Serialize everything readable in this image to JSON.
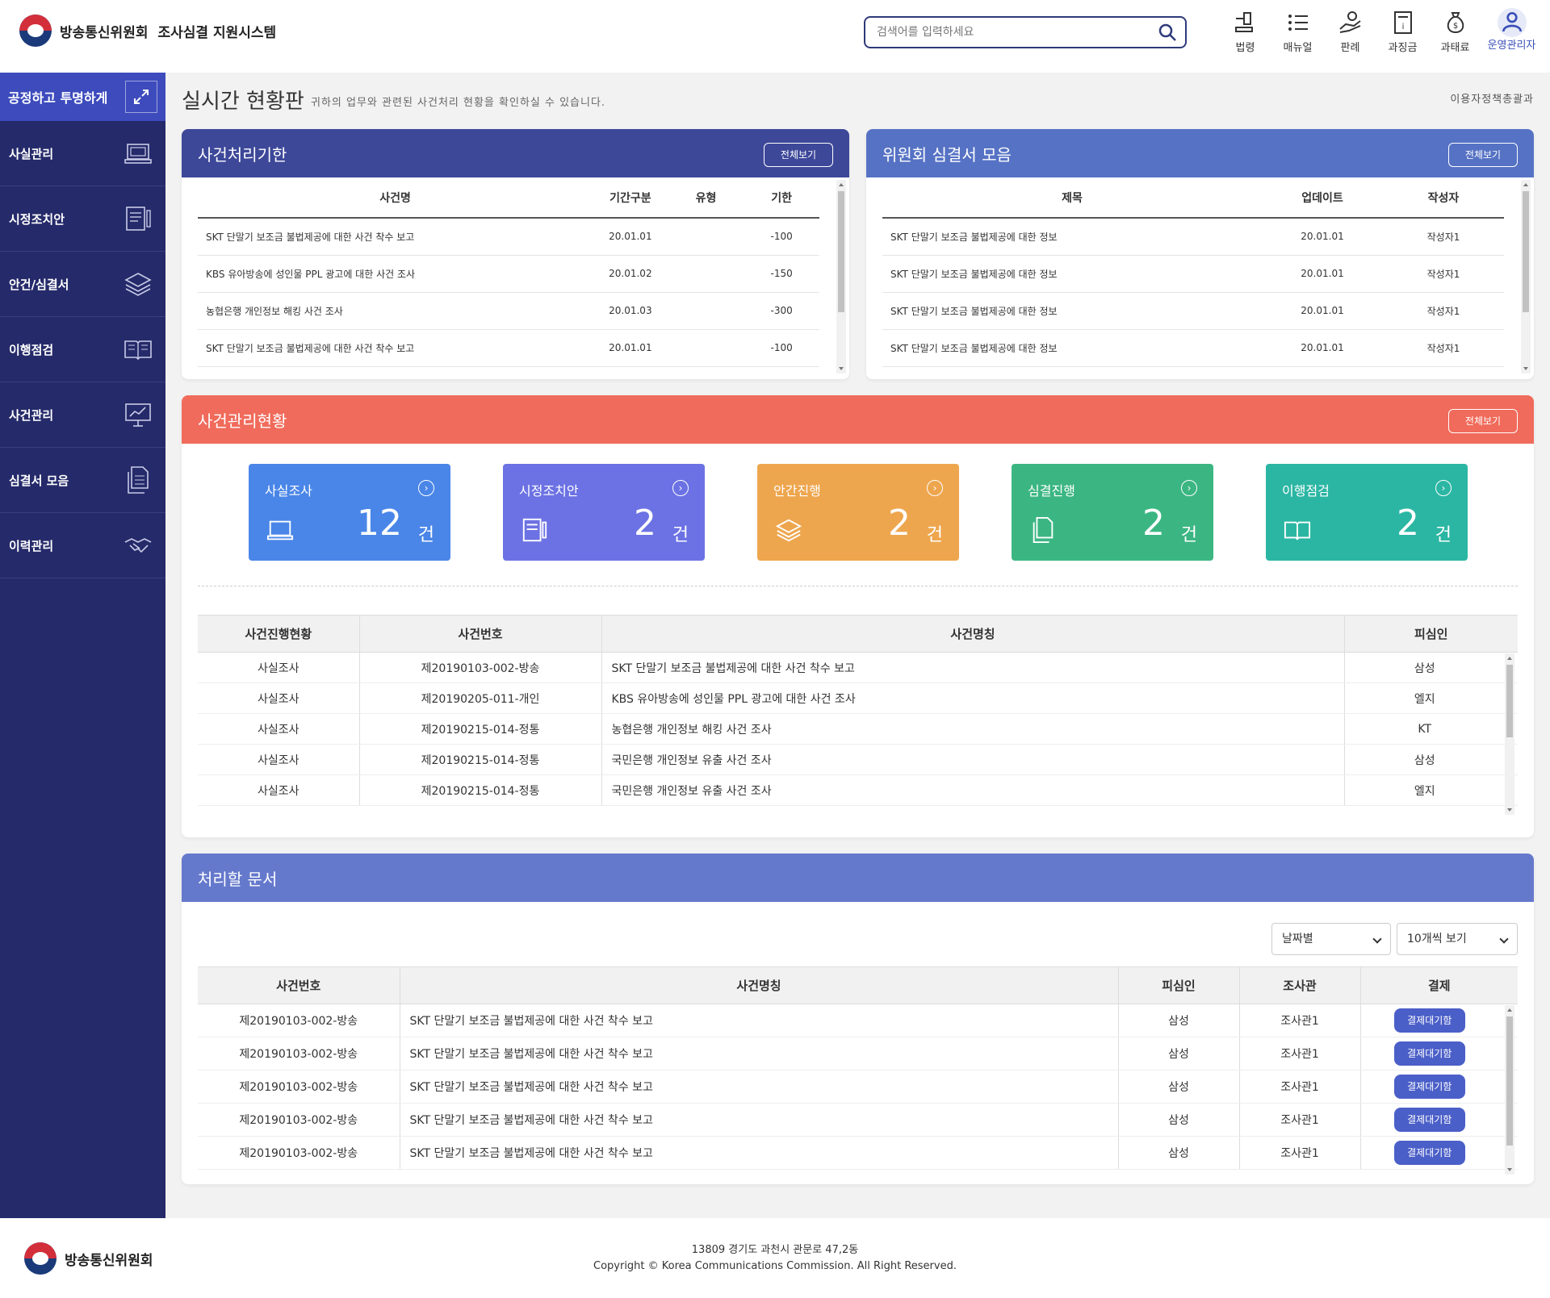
{
  "header": {
    "org": "방송통신위원회",
    "system": "조사심결 지원시스템",
    "search_placeholder": "검색어를 입력하세요",
    "nav": [
      {
        "label": "법령",
        "icon": "gavel-icon"
      },
      {
        "label": "매뉴얼",
        "icon": "list-icon"
      },
      {
        "label": "판례",
        "icon": "hand-coin-icon"
      },
      {
        "label": "과징금",
        "icon": "receipt-icon"
      },
      {
        "label": "과태료",
        "icon": "money-bag-icon"
      }
    ],
    "user_label": "운영관리자"
  },
  "sidebar": {
    "top_label": "공정하고 투명하게",
    "items": [
      {
        "label": "사실관리",
        "icon": "laptop-icon"
      },
      {
        "label": "시정조치안",
        "icon": "document-pen-icon"
      },
      {
        "label": "안건/심결서",
        "icon": "layers-icon"
      },
      {
        "label": "이행점검",
        "icon": "book-icon"
      },
      {
        "label": "사건관리",
        "icon": "chart-board-icon"
      },
      {
        "label": "심결서 모음",
        "icon": "files-icon"
      },
      {
        "label": "이력관리",
        "icon": "handshake-icon"
      }
    ]
  },
  "page": {
    "title": "실시간 현황판",
    "subtitle": "귀하의 업무와 관련된 사건처리 현황을 확인하실 수 있습니다.",
    "dept": "이용자정책총괄과"
  },
  "deadline_card": {
    "title": "사건처리기한",
    "view_all": "전체보기",
    "columns": [
      "사건명",
      "기간구분",
      "유형",
      "기한"
    ],
    "rows": [
      {
        "name": "SKT 단말기 보조금 불법제공에 대한 사건 착수 보고",
        "period": "20.01.01",
        "type": "",
        "deadline": "-100"
      },
      {
        "name": "KBS 유아방송에 성인물 PPL 광고에 대한 사건 조사",
        "period": "20.01.02",
        "type": "",
        "deadline": "-150"
      },
      {
        "name": "농협은행 개인정보 해킹 사건 조사",
        "period": "20.01.03",
        "type": "",
        "deadline": "-300"
      },
      {
        "name": "SKT 단말기 보조금 불법제공에 대한 사건 착수 보고",
        "period": "20.01.01",
        "type": "",
        "deadline": "-100"
      }
    ]
  },
  "decision_card": {
    "title": "위원회 심결서 모음",
    "view_all": "전체보기",
    "columns": [
      "제목",
      "업데이트",
      "작성자"
    ],
    "rows": [
      {
        "title": "SKT 단말기 보조금 불법제공에 대한 정보",
        "updated": "20.01.01",
        "author": "작성자1"
      },
      {
        "title": "SKT 단말기 보조금 불법제공에 대한 정보",
        "updated": "20.01.01",
        "author": "작성자1"
      },
      {
        "title": "SKT 단말기 보조금 불법제공에 대한 정보",
        "updated": "20.01.01",
        "author": "작성자1"
      },
      {
        "title": "SKT 단말기 보조금 불법제공에 대한 정보",
        "updated": "20.01.01",
        "author": "작성자1"
      }
    ]
  },
  "status_card": {
    "title": "사건관리현황",
    "view_all": "전체보기",
    "unit": "건",
    "stats": [
      {
        "label": "사실조사",
        "count": "12",
        "color": "#4a86e8",
        "icon": "laptop-icon"
      },
      {
        "label": "시정조치안",
        "count": "2",
        "color": "#6c72e3",
        "icon": "document-pen-icon"
      },
      {
        "label": "안간진행",
        "count": "2",
        "color": "#eea64e",
        "icon": "layers-icon"
      },
      {
        "label": "심결진행",
        "count": "2",
        "color": "#3bb682",
        "icon": "files-icon"
      },
      {
        "label": "이행점검",
        "count": "2",
        "color": "#2bb6a3",
        "icon": "book-icon"
      }
    ],
    "columns": [
      "사건진행현황",
      "사건번호",
      "사건명칭",
      "피심인"
    ],
    "rows": [
      {
        "status": "사실조사",
        "number": "제20190103-002-방송",
        "name": "SKT 단말기 보조금 불법제공에 대한 사건 착수 보고",
        "respondent": "삼성"
      },
      {
        "status": "사실조사",
        "number": "제20190205-011-개인",
        "name": "KBS 유아방송에 성인물 PPL 광고에 대한 사건 조사",
        "respondent": "엘지"
      },
      {
        "status": "사실조사",
        "number": "제20190215-014-정통",
        "name": "농협은행 개인정보 해킹 사건 조사",
        "respondent": "KT"
      },
      {
        "status": "사실조사",
        "number": "제20190215-014-정통",
        "name": "국민은행 개인정보 유출 사건 조사",
        "respondent": "삼성"
      },
      {
        "status": "사실조사",
        "number": "제20190215-014-정통",
        "name": "국민은행 개인정보 유출 사건 조사",
        "respondent": "엘지"
      }
    ]
  },
  "todo_card": {
    "title": "처리할 문서",
    "sort_select": "날짜별",
    "page_select": "10개씩 보기",
    "columns": [
      "사건번호",
      "사건명칭",
      "피심인",
      "조사관",
      "결제"
    ],
    "approve_label": "결제대기함",
    "rows": [
      {
        "number": "제20190103-002-방송",
        "name": "SKT 단말기 보조금 불법제공에 대한 사건 착수 보고",
        "respondent": "삼성",
        "investigator": "조사관1"
      },
      {
        "number": "제20190103-002-방송",
        "name": "SKT 단말기 보조금 불법제공에 대한 사건 착수 보고",
        "respondent": "삼성",
        "investigator": "조사관1"
      },
      {
        "number": "제20190103-002-방송",
        "name": "SKT 단말기 보조금 불법제공에 대한 사건 착수 보고",
        "respondent": "삼성",
        "investigator": "조사관1"
      },
      {
        "number": "제20190103-002-방송",
        "name": "SKT 단말기 보조금 불법제공에 대한 사건 착수 보고",
        "respondent": "삼성",
        "investigator": "조사관1"
      },
      {
        "number": "제20190103-002-방송",
        "name": "SKT 단말기 보조금 불법제공에 대한 사건 착수 보고",
        "respondent": "삼성",
        "investigator": "조사관1"
      }
    ]
  },
  "footer": {
    "org": "방송통신위원회",
    "address": "13809 경기도 과천시 관문로 47,2동",
    "copyright": "Copyright © Korea Communications Commission. All Right Reserved."
  }
}
